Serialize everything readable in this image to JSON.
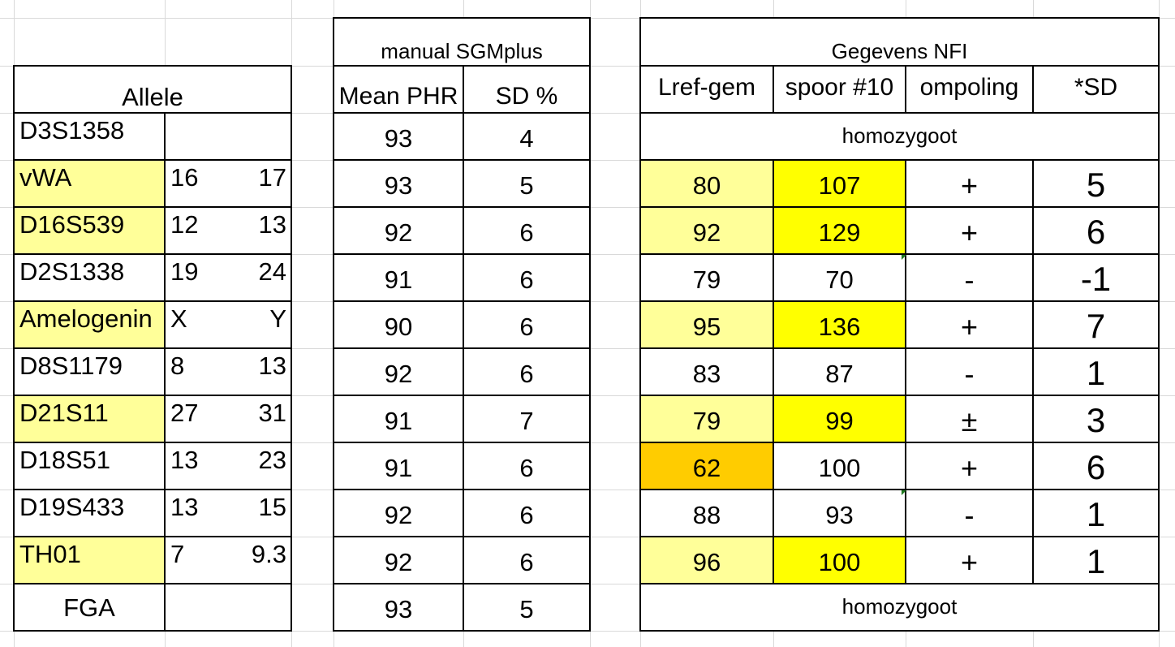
{
  "allele_table": {
    "header": "Allele",
    "rows": [
      {
        "locus": "D3S1358",
        "a1": "",
        "a2": ""
      },
      {
        "locus": "vWA",
        "a1": "16",
        "a2": "17"
      },
      {
        "locus": "D16S539",
        "a1": "12",
        "a2": "13"
      },
      {
        "locus": "D2S1338",
        "a1": "19",
        "a2": "24"
      },
      {
        "locus": "Amelogenin",
        "a1": "X",
        "a2": "Y"
      },
      {
        "locus": "D8S1179",
        "a1": "8",
        "a2": "13"
      },
      {
        "locus": "D21S11",
        "a1": "27",
        "a2": "31"
      },
      {
        "locus": "D18S51",
        "a1": "13",
        "a2": "23"
      },
      {
        "locus": "D19S433",
        "a1": "13",
        "a2": "15"
      },
      {
        "locus": "TH01",
        "a1": "7",
        "a2": "9.3"
      },
      {
        "locus": "FGA",
        "a1": "",
        "a2": ""
      }
    ]
  },
  "sgm_table": {
    "title": "manual SGMplus",
    "col1": "Mean PHR",
    "col2": "SD %",
    "rows": [
      {
        "mean": "93",
        "sd": "4"
      },
      {
        "mean": "93",
        "sd": "5"
      },
      {
        "mean": "92",
        "sd": "6"
      },
      {
        "mean": "91",
        "sd": "6"
      },
      {
        "mean": "90",
        "sd": "6"
      },
      {
        "mean": "92",
        "sd": "6"
      },
      {
        "mean": "91",
        "sd": "7"
      },
      {
        "mean": "91",
        "sd": "6"
      },
      {
        "mean": "92",
        "sd": "6"
      },
      {
        "mean": "92",
        "sd": "6"
      },
      {
        "mean": "93",
        "sd": "5"
      }
    ]
  },
  "nfi_table": {
    "title": "Gegevens NFI",
    "col1": "Lref-gem",
    "col2": "spoor #10",
    "col3": "ompoling",
    "col4": "*SD",
    "homozygoot_top": "homozygoot",
    "homozygoot_bottom": "homozygoot",
    "rows": [
      {
        "lref": "80",
        "spoor": "107",
        "ompoling": "+",
        "sd": "5"
      },
      {
        "lref": "92",
        "spoor": "129",
        "ompoling": "+",
        "sd": "6"
      },
      {
        "lref": "79",
        "spoor": "70",
        "ompoling": "-",
        "sd": "-1"
      },
      {
        "lref": "95",
        "spoor": "136",
        "ompoling": "+",
        "sd": "7"
      },
      {
        "lref": "83",
        "spoor": "87",
        "ompoling": "-",
        "sd": "1"
      },
      {
        "lref": "79",
        "spoor": "99",
        "ompoling": "±",
        "sd": "3"
      },
      {
        "lref": "62",
        "spoor": "100",
        "ompoling": "+",
        "sd": "6"
      },
      {
        "lref": "88",
        "spoor": "93",
        "ompoling": "-",
        "sd": "1"
      },
      {
        "lref": "96",
        "spoor": "100",
        "ompoling": "+",
        "sd": "1"
      }
    ]
  },
  "colors": {
    "light_yellow": "#ffff99",
    "yellow": "#ffff00",
    "orange": "#ffcc00",
    "gridline": "#d9d9d9"
  }
}
